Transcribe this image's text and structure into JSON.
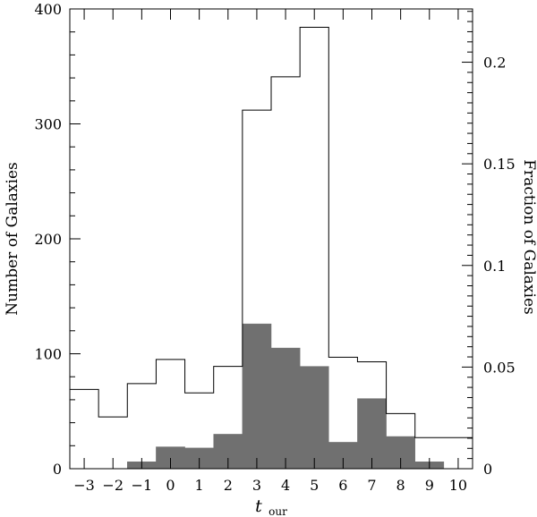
{
  "chart_data": {
    "type": "bar",
    "subtype": "overlaid histogram (step outline + filled)",
    "x": [
      -3,
      -2,
      -1,
      0,
      1,
      2,
      3,
      4,
      5,
      6,
      7,
      8,
      9,
      10
    ],
    "xlim": [
      -3.5,
      10.5
    ],
    "ylim": [
      0,
      400
    ],
    "y2lim": [
      0,
      0.2262
    ],
    "xlabel_main": "t",
    "xlabel_sub": "our",
    "ylabel": "Number of Galaxies",
    "y2label": "Fraction of Galaxies",
    "x_ticks": [
      "−3",
      "−2",
      "−1",
      "0",
      "1",
      "2",
      "3",
      "4",
      "5",
      "6",
      "7",
      "8",
      "9",
      "10"
    ],
    "y_ticks": [
      "0",
      "100",
      "200",
      "300",
      "400"
    ],
    "y2_ticks": [
      "0",
      "0.05",
      "0.1",
      "0.15",
      "0.2"
    ],
    "grid": false,
    "series": [
      {
        "style": "outline",
        "color": "#000000",
        "values": [
          69,
          45,
          74,
          95,
          66,
          89,
          312,
          341,
          384,
          97,
          93,
          48,
          27,
          27
        ]
      },
      {
        "style": "filled",
        "color": "#707070",
        "values": [
          0,
          0,
          6,
          19,
          18,
          30,
          126,
          105,
          89,
          23,
          61,
          28,
          6,
          0
        ]
      }
    ]
  }
}
